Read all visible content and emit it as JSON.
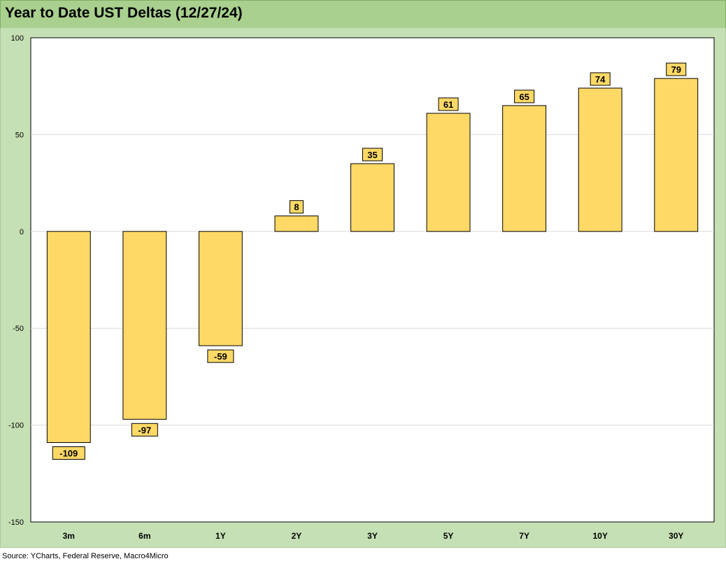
{
  "title": "Year to Date UST Deltas (12/27/24)",
  "source": "Source: YCharts, Federal Reserve, Macro4Micro",
  "colors": {
    "bar_fill": "#ffd966",
    "bar_stroke": "#000000",
    "frame_bg": "#c5e0b4",
    "title_bg": "#a9d08e",
    "plot_bg": "#ffffff",
    "gridline": "#d9d9d9"
  },
  "chart_data": {
    "type": "bar",
    "title": "Year to Date UST Deltas (12/27/24)",
    "categories": [
      "3m",
      "6m",
      "1Y",
      "2Y",
      "3Y",
      "5Y",
      "7Y",
      "10Y",
      "30Y"
    ],
    "values": [
      -109,
      -97,
      -59,
      8,
      35,
      61,
      65,
      74,
      79
    ],
    "data_labels": [
      "-109",
      "-97",
      "-59",
      "8",
      "35",
      "61",
      "65",
      "74",
      "79"
    ],
    "ylim": [
      -150,
      100
    ],
    "yticks": [
      100,
      50,
      0,
      -50,
      -100,
      -150
    ],
    "ytick_labels": [
      "100",
      "50",
      "0",
      "-50",
      "-100",
      "-150"
    ],
    "xlabel": "",
    "ylabel": "",
    "grid": true,
    "legend": "none"
  }
}
